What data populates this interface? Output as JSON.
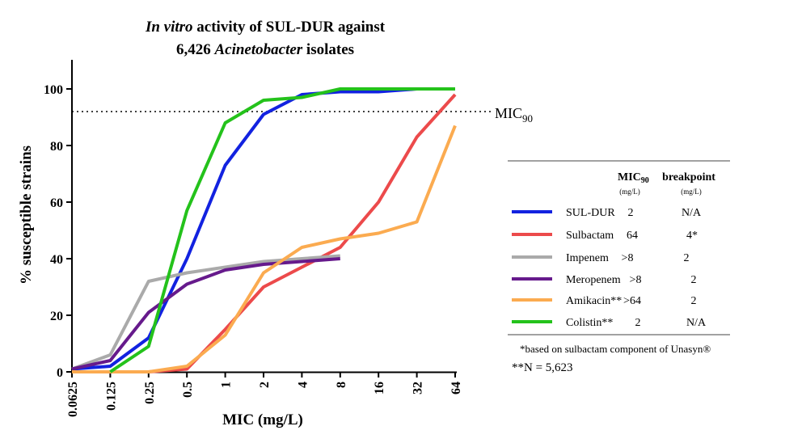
{
  "chart_data": {
    "type": "line",
    "title_line1": {
      "italic": "In vitro",
      "rest": " activity of SUL-DUR against"
    },
    "title_line2": {
      "pre": "6,426 ",
      "italic": "Acinetobacter",
      "post": " isolates"
    },
    "xlabel": "MIC (mg/L)",
    "ylabel": "% susceptible strains",
    "categories": [
      "0.0625",
      "0.125",
      "0.25",
      "0.5",
      "1",
      "2",
      "4",
      "8",
      "16",
      "32",
      "64"
    ],
    "ylim": [
      0,
      110
    ],
    "yticks": [
      "0",
      "20",
      "40",
      "60",
      "80",
      "100"
    ],
    "ytick_values": [
      0,
      20,
      40,
      60,
      80,
      100
    ],
    "reference_line": {
      "value": 92,
      "label_main": "MIC",
      "label_sub": "90"
    },
    "series": [
      {
        "name": "SUL-DUR",
        "color": "#1222e0",
        "values": [
          1,
          2,
          12,
          40,
          73,
          91,
          98,
          99,
          99,
          100,
          100
        ]
      },
      {
        "name": "Sulbactam",
        "color": "#ec4a4b",
        "values": [
          0,
          0,
          0,
          1,
          15,
          30,
          37,
          44,
          60,
          83,
          98
        ]
      },
      {
        "name": "Impenem",
        "color": "#aaaaaa",
        "values": [
          1,
          6,
          32,
          35,
          37,
          39,
          40,
          41,
          null,
          null,
          null
        ]
      },
      {
        "name": "Meropenem",
        "color": "#661a8c",
        "values": [
          1,
          4,
          21,
          31,
          36,
          38,
          39,
          40,
          null,
          null,
          null
        ]
      },
      {
        "name": "Amikacin**",
        "color": "#fbab50",
        "values": [
          0,
          0,
          0,
          2,
          13,
          35,
          44,
          47,
          49,
          53,
          87
        ]
      },
      {
        "name": "Colistin**",
        "color": "#24c21b",
        "values": [
          null,
          0,
          9,
          57,
          88,
          96,
          97,
          100,
          100,
          100,
          100
        ]
      }
    ]
  },
  "legend": {
    "header_mic_main": "MIC",
    "header_mic_sub": "90",
    "header_breakpoint": "breakpoint",
    "unit_mic": "(mg/L)",
    "unit_breakpoint": "(mg/L)",
    "rows": [
      {
        "name": "SUL-DUR",
        "mic": "2",
        "breakpoint": "N/A"
      },
      {
        "name": "Sulbactam",
        "mic": "64",
        "breakpoint": "4*"
      },
      {
        "name": "Impenem",
        "mic": ">8",
        "breakpoint": "2"
      },
      {
        "name": "Meropenem",
        "mic": ">8",
        "breakpoint": "2"
      },
      {
        "name": "Amikacin**",
        "mic": ">64",
        "breakpoint": "2"
      },
      {
        "name": "Colistin**",
        "mic": "2",
        "breakpoint": "N/A"
      }
    ],
    "footnote1": "*based on sulbactam component of Unasyn®",
    "footnote2": "**N = 5,623"
  }
}
